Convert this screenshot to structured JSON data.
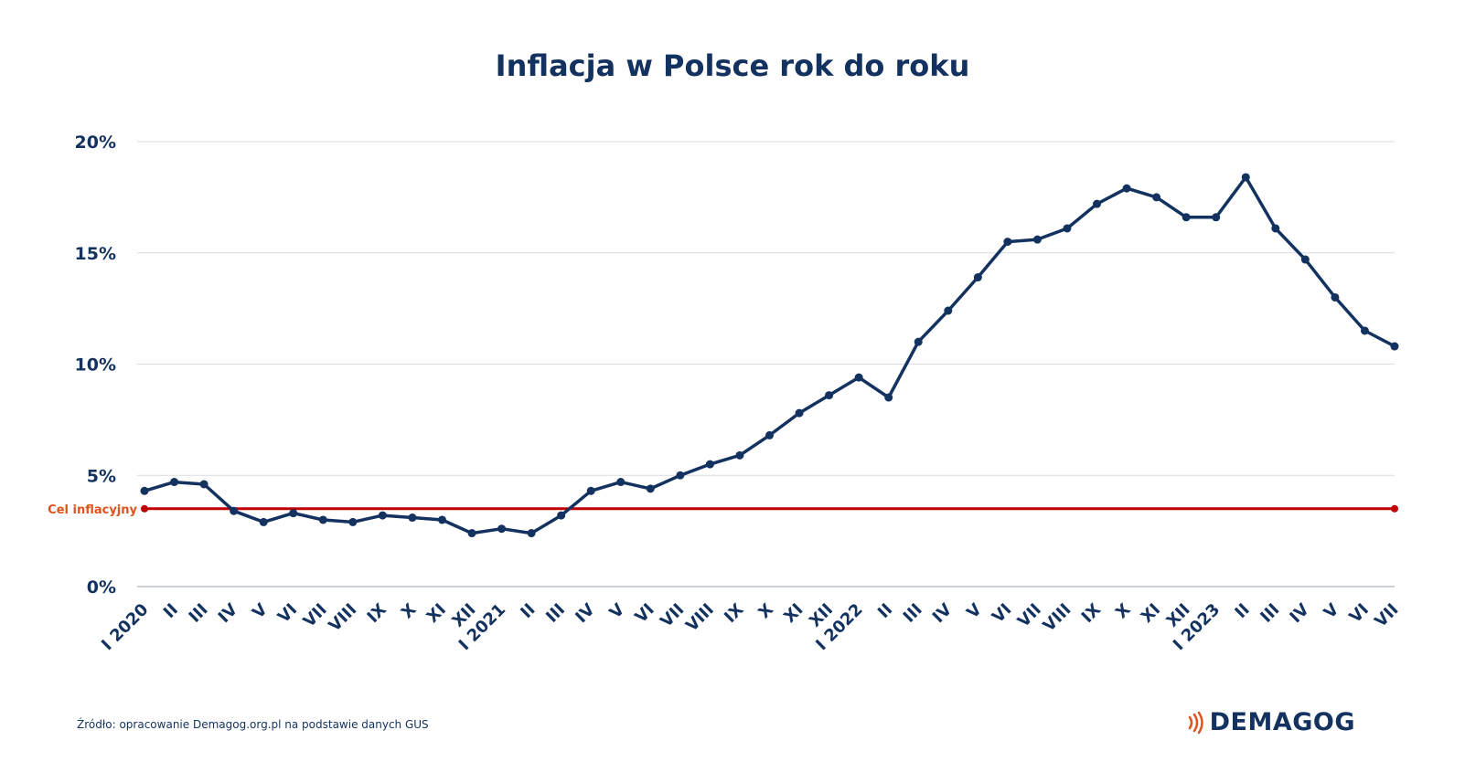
{
  "chart_data": {
    "type": "line",
    "title": "Inflacja w Polsce rok do roku",
    "xlabel": "",
    "ylabel": "",
    "ylim": [
      0,
      20
    ],
    "yticks": [
      "0%",
      "5%",
      "10%",
      "15%",
      "20%"
    ],
    "grid": true,
    "categories": [
      "I 2020",
      "II",
      "III",
      "IV",
      "V",
      "VI",
      "VII",
      "VIII",
      "IX",
      "X",
      "XI",
      "XII",
      "I 2021",
      "II",
      "III",
      "IV",
      "V",
      "VI",
      "VII",
      "VIII",
      "IX",
      "X",
      "XI",
      "XII",
      "I 2022",
      "II",
      "III",
      "IV",
      "V",
      "VI",
      "VII",
      "VIII",
      "IX",
      "X",
      "XI",
      "XII",
      "I 2023",
      "II",
      "III",
      "IV",
      "V",
      "VI",
      "VII"
    ],
    "series": [
      {
        "values": [
          4.3,
          4.7,
          4.6,
          3.4,
          2.9,
          3.3,
          3.0,
          2.9,
          3.2,
          3.1,
          3.0,
          2.4,
          2.6,
          2.4,
          3.2,
          4.3,
          4.7,
          4.4,
          5.0,
          5.5,
          5.9,
          6.8,
          7.8,
          8.6,
          9.4,
          8.5,
          11.0,
          12.4,
          13.9,
          15.5,
          15.6,
          16.1,
          17.2,
          17.9,
          17.5,
          16.6,
          16.6,
          18.4,
          16.1,
          14.7,
          13.0,
          11.5,
          10.8
        ],
        "color": "#13325f"
      }
    ],
    "target": {
      "label": "Cel inflacyjny",
      "value": 3.5,
      "color": "#c00000"
    }
  },
  "footer": {
    "source": "Źródło: opracowanie Demagog.org.pl na podstawie danych GUS",
    "brand": "DEMAGOG",
    "brand_icon": "signal-waves-icon",
    "brand_icon_color": "#e0531f"
  }
}
